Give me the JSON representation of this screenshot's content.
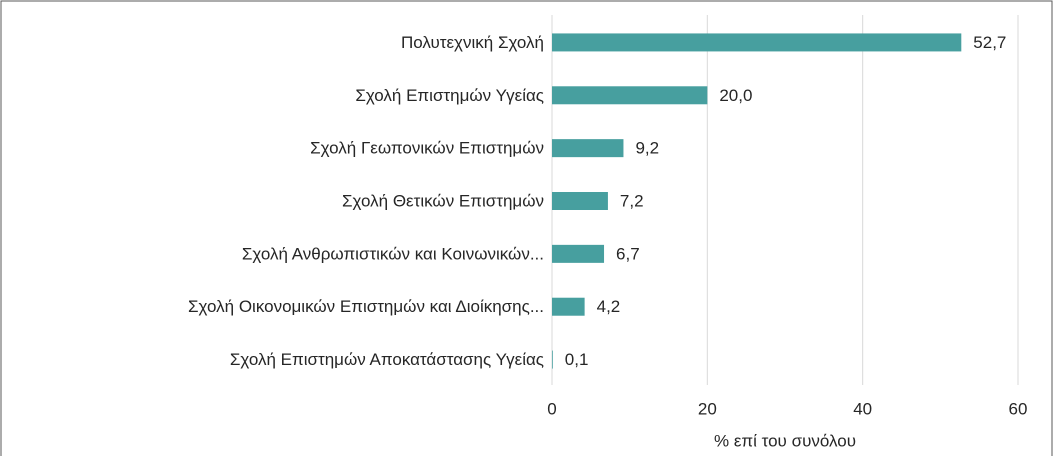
{
  "chart_data": {
    "type": "barh",
    "categories": [
      "Πολυτεχνική Σχολή",
      "Σχολή Επιστημών Υγείας",
      "Σχολή Γεωπονικών Επιστημών",
      "Σχολή Θετικών Επιστημών",
      "Σχολή Ανθρωπιστικών και Κοινωνικών...",
      "Σχολή Οικονομικών Επιστημών και Διοίκησης...",
      "Σχολή Επιστημών Αποκατάστασης Υγείας"
    ],
    "values": [
      52.7,
      20.0,
      9.2,
      7.2,
      6.7,
      4.2,
      0.1
    ],
    "value_labels": [
      "52,7",
      "20,0",
      "9,2",
      "7,2",
      "6,7",
      "4,2",
      "0,1"
    ],
    "color": "#479f9f",
    "xlabel": "% επί του συνόλου",
    "xlim": [
      0,
      60
    ],
    "xticks": [
      0,
      20,
      40,
      60
    ],
    "grid": true
  }
}
